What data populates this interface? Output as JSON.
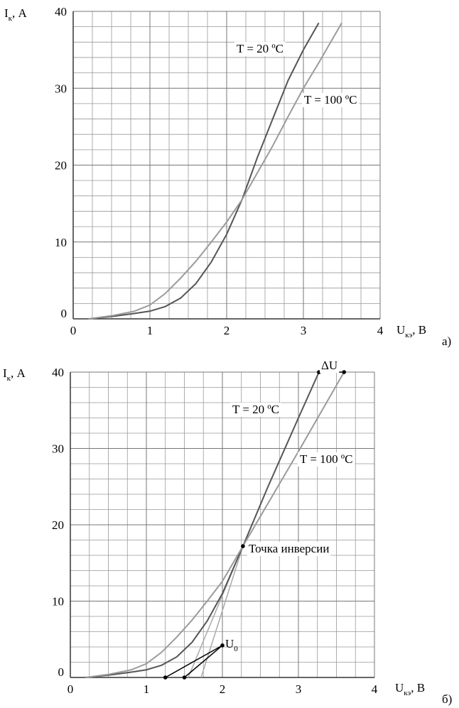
{
  "chart_data": [
    {
      "type": "line",
      "panel_label": "а)",
      "y_label": {
        "main": "I",
        "sub": "к",
        "unit": ", А"
      },
      "x_label": {
        "main": "U",
        "sub": "кэ",
        "unit": ", В"
      },
      "xlim": [
        0,
        4
      ],
      "ylim": [
        0,
        40
      ],
      "xticks": [
        0,
        1,
        2,
        3,
        4
      ],
      "yticks": [
        0,
        10,
        20,
        30,
        40
      ],
      "grid": true,
      "series": [
        {
          "name": "T = 20 ºC",
          "color": "#555555",
          "x": [
            0.2,
            0.5,
            0.8,
            1.0,
            1.2,
            1.4,
            1.6,
            1.8,
            2.0,
            2.2,
            2.4,
            2.6,
            2.8,
            3.0,
            3.2
          ],
          "values": [
            0,
            0.3,
            0.7,
            1.0,
            1.6,
            2.7,
            4.6,
            7.4,
            11,
            15.5,
            21,
            26,
            31,
            35,
            38.5
          ]
        },
        {
          "name": "T = 100 ºC",
          "color": "#9a9a9a",
          "x": [
            0.2,
            0.5,
            0.8,
            1.0,
            1.2,
            1.4,
            1.6,
            1.8,
            2.0,
            2.2,
            2.4,
            2.6,
            2.8,
            3.0,
            3.2,
            3.5
          ],
          "values": [
            0,
            0.4,
            1.0,
            1.8,
            3.3,
            5.3,
            7.5,
            10,
            12.6,
            15.5,
            19,
            22.5,
            26.3,
            30,
            33.3,
            38.5
          ]
        }
      ]
    },
    {
      "type": "line",
      "panel_label": "б)",
      "y_label": {
        "main": "I",
        "sub": "к",
        "unit": ", А"
      },
      "x_label": {
        "main": "U",
        "sub": "кэ",
        "unit": ", В"
      },
      "xlim": [
        0,
        4
      ],
      "ylim": [
        0,
        40
      ],
      "xticks": [
        0,
        1,
        2,
        3,
        4
      ],
      "yticks": [
        0,
        10,
        20,
        30,
        40
      ],
      "grid": true,
      "series": [
        {
          "name": "T = 20 ºC",
          "color": "#555555",
          "x": [
            0.2,
            0.5,
            0.8,
            1.0,
            1.2,
            1.4,
            1.6,
            1.8,
            2.0,
            2.27,
            2.6,
            3.0,
            3.27
          ],
          "values": [
            0,
            0.3,
            0.7,
            1.0,
            1.6,
            2.7,
            4.6,
            7.4,
            11,
            17.2,
            25,
            34,
            40
          ]
        },
        {
          "name": "T = 100 ºC",
          "color": "#9a9a9a",
          "x": [
            0.2,
            0.5,
            0.8,
            1.0,
            1.2,
            1.4,
            1.6,
            1.8,
            2.0,
            2.27,
            2.6,
            3.0,
            3.3,
            3.6
          ],
          "values": [
            0,
            0.4,
            1.0,
            1.8,
            3.3,
            5.3,
            7.5,
            10,
            12.6,
            17.2,
            22.8,
            29.6,
            34.8,
            40
          ]
        }
      ],
      "lines": [
        {
          "color": "#aaaaaa",
          "x": [
            1.55,
            2.27
          ],
          "values": [
            0,
            17.2
          ]
        },
        {
          "color": "#aaaaaa",
          "x": [
            1.72,
            2.27
          ],
          "values": [
            0,
            17.2
          ]
        },
        {
          "color": "#000000",
          "x": [
            1.25,
            2.0
          ],
          "values": [
            0,
            4.2
          ]
        },
        {
          "color": "#000000",
          "x": [
            1.5,
            2.0
          ],
          "values": [
            0,
            4.2
          ]
        },
        {
          "color": "#000000",
          "x": [
            3.27,
            3.6
          ],
          "values": [
            40,
            40
          ]
        }
      ],
      "points": {
        "x": [
          3.27,
          3.6,
          2.27,
          1.25,
          1.5,
          2.0
        ],
        "values": [
          40,
          40,
          17.2,
          0,
          0,
          4.2
        ]
      },
      "annotations": [
        "ΔU",
        "Точка инверсии"
      ],
      "u0_label": {
        "main": "U",
        "sub": "0"
      }
    }
  ]
}
